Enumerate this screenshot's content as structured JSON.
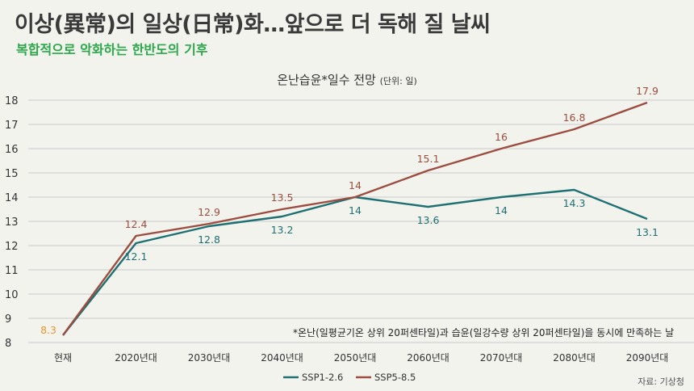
{
  "headline": "이상(異常)의 일상(日常)화…앞으로 더 독해 질 날씨",
  "subheadline": "복합적으로 악화하는 한반도의 기후",
  "note": "*온난(일평균기온 상위 20퍼센타일)과 습윤(일강수량 상위 20퍼센타일)을 동시에 만족하는 날",
  "source": "자료: 기상청",
  "colors": {
    "background": "#f3f3ee",
    "headline": "#3a3a3a",
    "subheadline": "#2aa84a",
    "ssp1": "#1e7073",
    "ssp5": "#9c4d40",
    "current": "#e8972e",
    "gridline": "#c9c9c9"
  },
  "chart_data": {
    "type": "line",
    "title": "온난습윤*일수 전망",
    "title_unit": "(단위: 일)",
    "categories": [
      "현재",
      "2020년대",
      "2030년대",
      "2040년대",
      "2050년대",
      "2060년대",
      "2070년대",
      "2080년대",
      "2090년대"
    ],
    "yticks": [
      8,
      9,
      10,
      11,
      12,
      13,
      14,
      15,
      16,
      17,
      18
    ],
    "ylim": [
      8,
      18
    ],
    "grid": true,
    "legend_position": "bottom-center",
    "current_value": {
      "category": "현재",
      "value": 8.3,
      "label": "8.3"
    },
    "series": [
      {
        "name": "SSP1-2.6",
        "values": [
          8.3,
          12.1,
          12.8,
          13.2,
          14,
          13.6,
          14,
          14.3,
          13.1
        ],
        "labels": [
          "",
          "12.1",
          "12.8",
          "13.2",
          "14",
          "13.6",
          "14",
          "14.3",
          "13.1"
        ]
      },
      {
        "name": "SSP5-8.5",
        "values": [
          8.3,
          12.4,
          12.9,
          13.5,
          14,
          15.1,
          16,
          16.8,
          17.9
        ],
        "labels": [
          "",
          "12.4",
          "12.9",
          "13.5",
          "14",
          "15.1",
          "16",
          "16.8",
          "17.9"
        ]
      }
    ]
  }
}
